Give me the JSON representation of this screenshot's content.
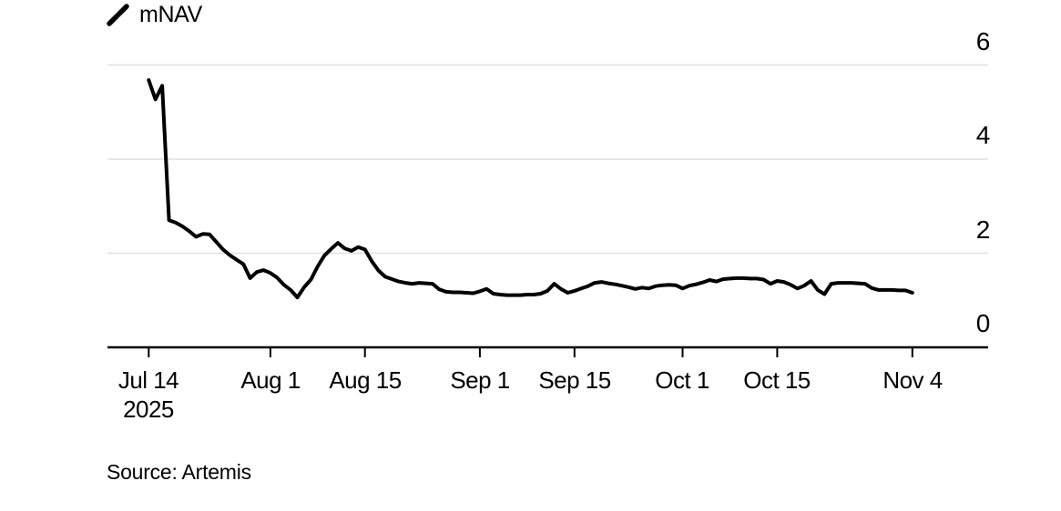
{
  "legend": {
    "label": "mNAV",
    "icon": "line-swatch-icon"
  },
  "source": {
    "text": "Source: Artemis"
  },
  "colors": {
    "background": "#ffffff",
    "line": "#000000",
    "grid": "#e0e0e0",
    "axis": "#000000",
    "tick": "#000000",
    "text": "#000000"
  },
  "chart_data": {
    "type": "line",
    "title": "",
    "legend_position": "top-left",
    "y_axis_side": "right",
    "grid": "horizontal",
    "ylim": [
      0,
      6.2
    ],
    "x_ticks": [
      {
        "label": "Jul 14",
        "sublabel": "2025",
        "day": 0
      },
      {
        "label": "Aug 1",
        "day": 18
      },
      {
        "label": "Aug 15",
        "day": 32
      },
      {
        "label": "Sep 1",
        "day": 49
      },
      {
        "label": "Sep 15",
        "day": 63
      },
      {
        "label": "Oct 1",
        "day": 79
      },
      {
        "label": "Oct 15",
        "day": 93
      },
      {
        "label": "Nov 4",
        "day": 113
      }
    ],
    "y_ticks": [
      {
        "label": "6",
        "value": 6
      },
      {
        "label": "4",
        "value": 4
      },
      {
        "label": "2",
        "value": 2
      },
      {
        "label": "0",
        "value": 0
      }
    ],
    "series": [
      {
        "name": "mNAV",
        "start_date": "Jul 14 2025",
        "end_date": "Nov 4 2025",
        "frequency": "daily",
        "values": [
          5.68,
          5.27,
          5.56,
          2.7,
          2.65,
          2.57,
          2.47,
          2.35,
          2.41,
          2.4,
          2.24,
          2.08,
          1.96,
          1.86,
          1.77,
          1.47,
          1.6,
          1.64,
          1.58,
          1.48,
          1.33,
          1.22,
          1.06,
          1.28,
          1.44,
          1.72,
          1.95,
          2.09,
          2.22,
          2.1,
          2.05,
          2.13,
          2.08,
          1.83,
          1.63,
          1.5,
          1.45,
          1.4,
          1.37,
          1.35,
          1.37,
          1.36,
          1.35,
          1.23,
          1.18,
          1.17,
          1.17,
          1.16,
          1.15,
          1.19,
          1.24,
          1.14,
          1.12,
          1.11,
          1.11,
          1.11,
          1.12,
          1.12,
          1.14,
          1.2,
          1.35,
          1.24,
          1.16,
          1.2,
          1.25,
          1.3,
          1.37,
          1.39,
          1.36,
          1.34,
          1.31,
          1.28,
          1.24,
          1.27,
          1.25,
          1.3,
          1.32,
          1.33,
          1.32,
          1.25,
          1.31,
          1.34,
          1.38,
          1.43,
          1.4,
          1.45,
          1.46,
          1.47,
          1.47,
          1.46,
          1.46,
          1.44,
          1.35,
          1.41,
          1.39,
          1.33,
          1.25,
          1.31,
          1.41,
          1.22,
          1.13,
          1.35,
          1.37,
          1.37,
          1.37,
          1.36,
          1.35,
          1.26,
          1.22,
          1.22,
          1.22,
          1.21,
          1.21,
          1.16
        ]
      }
    ],
    "source": "Source: Artemis"
  }
}
